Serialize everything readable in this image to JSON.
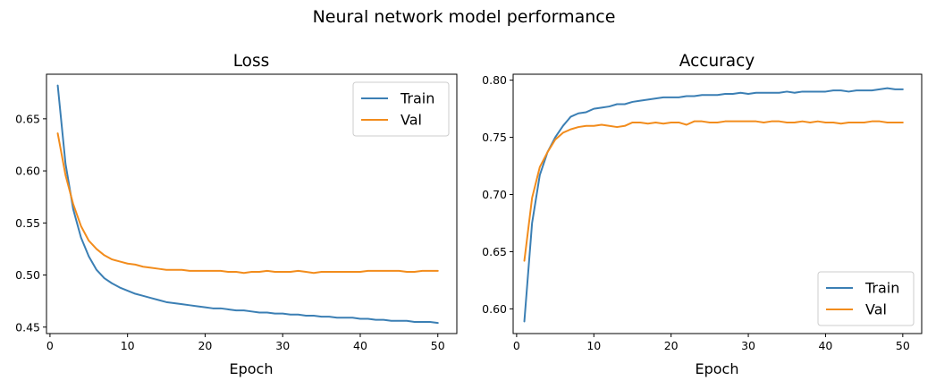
{
  "figure": {
    "title": "Neural network model performance"
  },
  "colors": {
    "train": "#3b7fb4",
    "val": "#f28c1c",
    "axes": "#000000"
  },
  "chart_data": [
    {
      "type": "line",
      "title": "Loss",
      "xlabel": "Epoch",
      "ylabel": "",
      "xlim": [
        -0.45,
        52.45
      ],
      "ylim": [
        0.4438,
        0.6928
      ],
      "xticks": [
        0,
        10,
        20,
        30,
        40,
        50
      ],
      "yticks": [
        0.45,
        0.5,
        0.55,
        0.6,
        0.65
      ],
      "ytick_labels": [
        "0.45",
        "0.50",
        "0.55",
        "0.60",
        "0.65"
      ],
      "legend": "top-right",
      "x": [
        1,
        2,
        3,
        4,
        5,
        6,
        7,
        8,
        9,
        10,
        11,
        12,
        13,
        14,
        15,
        16,
        17,
        18,
        19,
        20,
        21,
        22,
        23,
        24,
        25,
        26,
        27,
        28,
        29,
        30,
        31,
        32,
        33,
        34,
        35,
        36,
        37,
        38,
        39,
        40,
        41,
        42,
        43,
        44,
        45,
        46,
        47,
        48,
        49,
        50
      ],
      "series": [
        {
          "name": "Train",
          "values": [
            0.682,
            0.607,
            0.563,
            0.536,
            0.518,
            0.505,
            0.497,
            0.492,
            0.488,
            0.485,
            0.482,
            0.48,
            0.478,
            0.476,
            0.474,
            0.473,
            0.472,
            0.471,
            0.47,
            0.469,
            0.468,
            0.468,
            0.467,
            0.466,
            0.466,
            0.465,
            0.464,
            0.464,
            0.463,
            0.463,
            0.462,
            0.462,
            0.461,
            0.461,
            0.46,
            0.46,
            0.459,
            0.459,
            0.459,
            0.458,
            0.458,
            0.457,
            0.457,
            0.456,
            0.456,
            0.456,
            0.455,
            0.455,
            0.455,
            0.454
          ]
        },
        {
          "name": "Val",
          "values": [
            0.636,
            0.596,
            0.568,
            0.547,
            0.533,
            0.525,
            0.519,
            0.515,
            0.513,
            0.511,
            0.51,
            0.508,
            0.507,
            0.506,
            0.505,
            0.505,
            0.505,
            0.504,
            0.504,
            0.504,
            0.504,
            0.504,
            0.503,
            0.503,
            0.502,
            0.503,
            0.503,
            0.504,
            0.503,
            0.503,
            0.503,
            0.504,
            0.503,
            0.502,
            0.503,
            0.503,
            0.503,
            0.503,
            0.503,
            0.503,
            0.504,
            0.504,
            0.504,
            0.504,
            0.504,
            0.503,
            0.503,
            0.504,
            0.504,
            0.504
          ]
        }
      ]
    },
    {
      "type": "line",
      "title": "Accuracy",
      "xlabel": "Epoch",
      "ylabel": "",
      "xlim": [
        -0.45,
        52.45
      ],
      "ylim": [
        0.5784,
        0.8052
      ],
      "xticks": [
        0,
        10,
        20,
        30,
        40,
        50
      ],
      "yticks": [
        0.6,
        0.65,
        0.7,
        0.75,
        0.8
      ],
      "ytick_labels": [
        "0.60",
        "0.65",
        "0.70",
        "0.75",
        "0.80"
      ],
      "legend": "bottom-right",
      "x": [
        1,
        2,
        3,
        4,
        5,
        6,
        7,
        8,
        9,
        10,
        11,
        12,
        13,
        14,
        15,
        16,
        17,
        18,
        19,
        20,
        21,
        22,
        23,
        24,
        25,
        26,
        27,
        28,
        29,
        30,
        31,
        32,
        33,
        34,
        35,
        36,
        37,
        38,
        39,
        40,
        41,
        42,
        43,
        44,
        45,
        46,
        47,
        48,
        49,
        50
      ],
      "series": [
        {
          "name": "Train",
          "values": [
            0.589,
            0.675,
            0.717,
            0.737,
            0.75,
            0.76,
            0.768,
            0.771,
            0.772,
            0.775,
            0.776,
            0.777,
            0.779,
            0.779,
            0.781,
            0.782,
            0.783,
            0.784,
            0.785,
            0.785,
            0.785,
            0.786,
            0.786,
            0.787,
            0.787,
            0.787,
            0.788,
            0.788,
            0.789,
            0.788,
            0.789,
            0.789,
            0.789,
            0.789,
            0.79,
            0.789,
            0.79,
            0.79,
            0.79,
            0.79,
            0.791,
            0.791,
            0.79,
            0.791,
            0.791,
            0.791,
            0.792,
            0.793,
            0.792,
            0.792
          ]
        },
        {
          "name": "Val",
          "values": [
            0.642,
            0.697,
            0.724,
            0.737,
            0.748,
            0.754,
            0.757,
            0.759,
            0.76,
            0.76,
            0.761,
            0.76,
            0.759,
            0.76,
            0.763,
            0.763,
            0.762,
            0.763,
            0.762,
            0.763,
            0.763,
            0.761,
            0.764,
            0.764,
            0.763,
            0.763,
            0.764,
            0.764,
            0.764,
            0.764,
            0.764,
            0.763,
            0.764,
            0.764,
            0.763,
            0.763,
            0.764,
            0.763,
            0.764,
            0.763,
            0.763,
            0.762,
            0.763,
            0.763,
            0.763,
            0.764,
            0.764,
            0.763,
            0.763,
            0.763
          ]
        }
      ]
    }
  ]
}
